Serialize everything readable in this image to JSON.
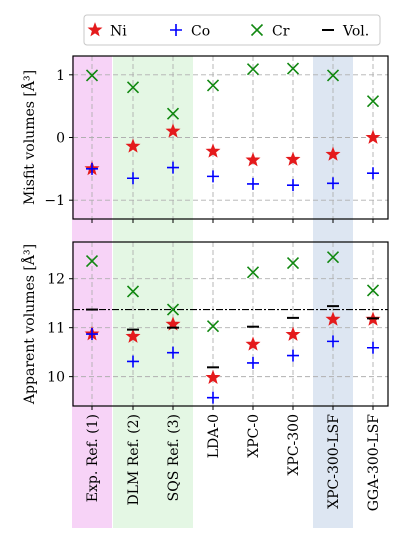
{
  "chart_data": [
    {
      "type": "scatter",
      "ylabel": "Misfit volumes [Å³]",
      "ylim": [
        -1.3,
        1.3
      ],
      "yticks": [
        -1,
        0,
        1
      ],
      "grid": true,
      "categories": [
        "Exp. Ref. (1)",
        "DLM Ref. (2)",
        "SQS Ref. (3)",
        "LDA-0",
        "XPC-0",
        "XPC-300",
        "XPC-300-LSF",
        "GGA-300-LSF"
      ],
      "series": [
        {
          "name": "Ni",
          "marker": "star",
          "color": "#e41a1c",
          "values": [
            -0.5,
            -0.14,
            0.1,
            -0.22,
            -0.36,
            -0.35,
            -0.27,
            0.0
          ]
        },
        {
          "name": "Co",
          "marker": "plus",
          "color": "#0000ff",
          "values": [
            -0.5,
            -0.65,
            -0.48,
            -0.62,
            -0.74,
            -0.76,
            -0.73,
            -0.57
          ]
        },
        {
          "name": "Cr",
          "marker": "x",
          "color": "#118811",
          "values": [
            0.99,
            0.8,
            0.38,
            0.83,
            1.09,
            1.1,
            0.99,
            0.58
          ]
        }
      ]
    },
    {
      "type": "scatter",
      "ylabel": "Apparent volumes [Å³]",
      "ylim": [
        9.4,
        12.75
      ],
      "yticks": [
        10,
        11,
        12
      ],
      "grid": true,
      "categories": [
        "Exp. Ref. (1)",
        "DLM Ref. (2)",
        "SQS Ref. (3)",
        "LDA-0",
        "XPC-0",
        "XPC-300",
        "XPC-300-LSF",
        "GGA-300-LSF"
      ],
      "series": [
        {
          "name": "Ni",
          "marker": "star",
          "color": "#e41a1c",
          "values": [
            10.87,
            10.82,
            11.07,
            9.98,
            10.66,
            10.86,
            11.17,
            11.17
          ]
        },
        {
          "name": "Co",
          "marker": "plus",
          "color": "#0000ff",
          "values": [
            10.87,
            10.31,
            10.49,
            9.57,
            10.28,
            10.43,
            10.72,
            10.59
          ]
        },
        {
          "name": "Cr",
          "marker": "x",
          "color": "#118811",
          "values": [
            12.36,
            11.74,
            11.37,
            11.03,
            12.13,
            12.32,
            12.44,
            11.76
          ]
        },
        {
          "name": "Vol.",
          "marker": "hline",
          "color": "#000000",
          "values": [
            11.37,
            10.96,
            11.0,
            10.19,
            11.02,
            11.2,
            11.44,
            11.19
          ]
        }
      ],
      "reference_line": {
        "value": 11.37,
        "style": "dashdot"
      }
    }
  ],
  "legend": {
    "placement": "top",
    "items": [
      {
        "label": "Ni",
        "marker": "star",
        "color": "#e41a1c"
      },
      {
        "label": "Co",
        "marker": "plus",
        "color": "#0000ff"
      },
      {
        "label": "Cr",
        "marker": "x",
        "color": "#118811"
      },
      {
        "label": "Vol.",
        "marker": "hline",
        "color": "#000000"
      }
    ]
  },
  "highlight_bands": [
    {
      "category_index": 0,
      "color": "#f7d3f7"
    },
    {
      "category_index": 1,
      "color": "#e4f7e4"
    },
    {
      "category_index": 2,
      "color": "#e4f7e4"
    },
    {
      "category_index": 6,
      "color": "#dde6f2"
    }
  ]
}
